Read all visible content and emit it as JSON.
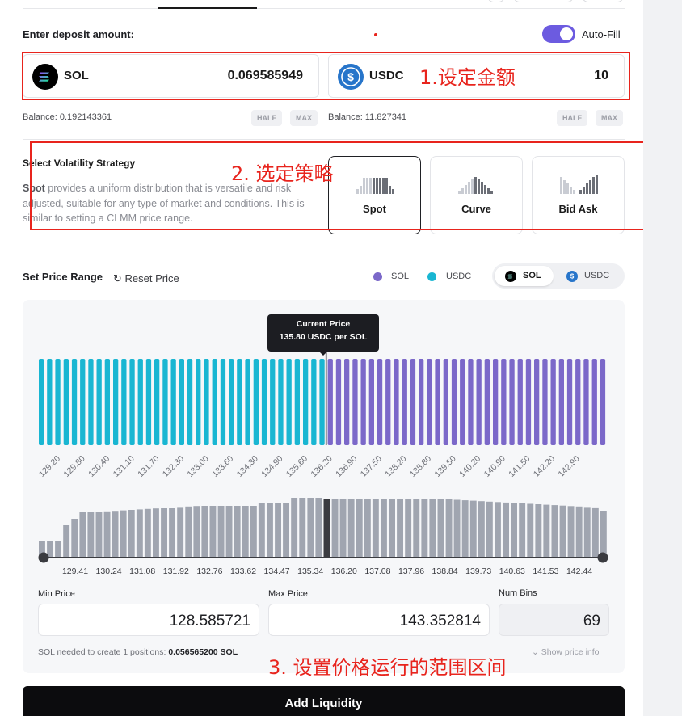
{
  "deposit": {
    "label": "Enter deposit amount:",
    "autofill_label": "Auto-Fill",
    "autofill_on": true,
    "token_a": {
      "symbol": "SOL",
      "amount": "0.069585949",
      "balance": "Balance: 0.192143361",
      "half": "HALF",
      "max": "MAX"
    },
    "token_b": {
      "symbol": "USDC",
      "amount": "10",
      "balance": "Balance: 11.827341",
      "half": "HALF",
      "max": "MAX"
    }
  },
  "strategy": {
    "title": "Select Volatility Strategy",
    "desc_bold": "Spot",
    "desc_rest": " provides a uniform distribution that is versatile and risk adjusted, suitable for any type of market and conditions. This is similar to setting a CLMM price range.",
    "options": [
      {
        "label": "Spot",
        "selected": true
      },
      {
        "label": "Curve",
        "selected": false
      },
      {
        "label": "Bid Ask",
        "selected": false
      }
    ]
  },
  "range": {
    "title": "Set Price Range",
    "reset_label": "Reset Price",
    "legend": [
      {
        "label": "SOL",
        "color": "#7b68c9"
      },
      {
        "label": "USDC",
        "color": "#19b6d2"
      }
    ],
    "toggle": [
      "SOL",
      "USDC"
    ],
    "current_price_title": "Current Price",
    "current_price_value": "135.80 USDC per SOL",
    "bin_labels": [
      "129.20",
      "129.80",
      "130.40",
      "131.10",
      "131.70",
      "132.30",
      "133.00",
      "133.60",
      "134.30",
      "134.90",
      "135.60",
      "136.20",
      "136.90",
      "137.50",
      "138.20",
      "138.80",
      "139.50",
      "140.20",
      "140.90",
      "141.50",
      "142.20",
      "142.90"
    ],
    "liquidity_labels": [
      "129.41",
      "130.24",
      "131.08",
      "131.92",
      "132.76",
      "133.62",
      "134.47",
      "135.34",
      "136.20",
      "137.08",
      "137.96",
      "138.84",
      "139.73",
      "140.63",
      "141.53",
      "142.44"
    ],
    "min_label": "Min Price",
    "min_value": "128.585721",
    "max_label": "Max Price",
    "max_value": "143.352814",
    "bins_label": "Num Bins",
    "bins_value": "69",
    "needed_text": "SOL needed to create 1 positions: ",
    "needed_value": "0.056565200 SOL",
    "show_info": "Show price info"
  },
  "add_label": "Add Liquidity",
  "annotations": [
    "1.设定金额",
    "2. 选定策略",
    "3. 设置价格运行的范围区间"
  ],
  "colors": {
    "sol": "#7b68c9",
    "usdc": "#19b6d2",
    "bars": "#a0a5b0",
    "current": "#3a3b40",
    "annot": "#e8241d"
  }
}
